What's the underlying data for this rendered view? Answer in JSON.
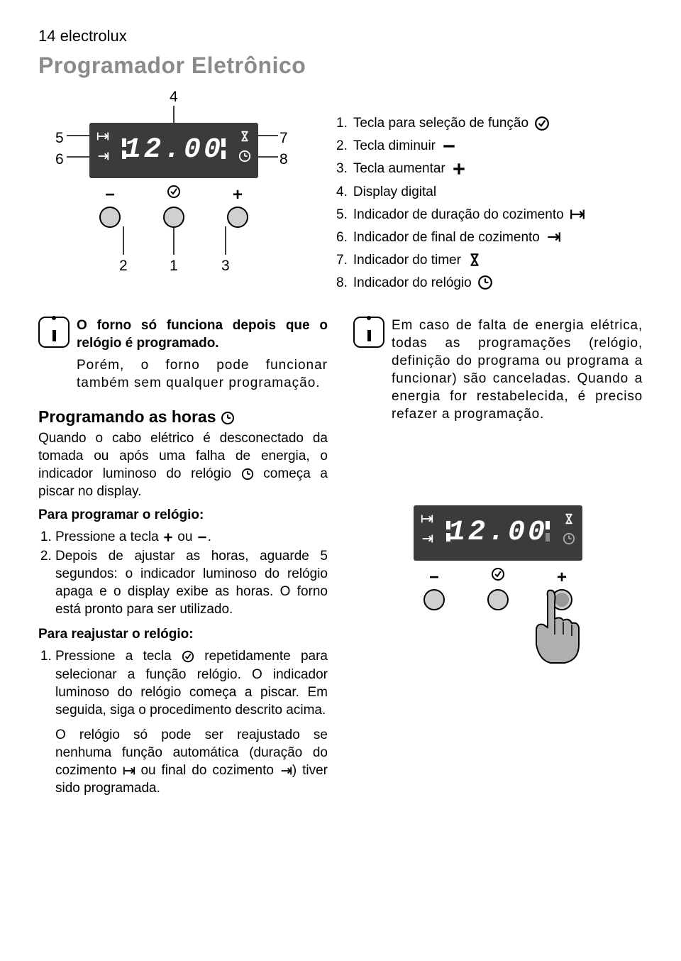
{
  "header": "14 electrolux",
  "title": "Programador Eletrônico",
  "display_time": "12.00",
  "diagram": {
    "callouts": {
      "n1": "1",
      "n2": "2",
      "n3": "3",
      "n4": "4",
      "n5": "5",
      "n6": "6",
      "n7": "7",
      "n8": "8"
    }
  },
  "legend": [
    {
      "n": "1.",
      "t": "Tecla para seleção de função",
      "icon": "func"
    },
    {
      "n": "2.",
      "t": "Tecla diminuir",
      "icon": "minus"
    },
    {
      "n": "3.",
      "t": "Tecla aumentar",
      "icon": "plus"
    },
    {
      "n": "4.",
      "t": "Display digital",
      "icon": ""
    },
    {
      "n": "5.",
      "t": "Indicador de duração do cozimento",
      "icon": "dur"
    },
    {
      "n": "6.",
      "t": "Indicador de final de cozimento",
      "icon": "end"
    },
    {
      "n": "7.",
      "t": "Indicador do timer",
      "icon": "timer"
    },
    {
      "n": "8.",
      "t": "Indicador do relógio",
      "icon": "clock"
    }
  ],
  "left": {
    "info": "O forno só funciona depois que o relógio é programado.",
    "info2": "Porém, o forno pode funcionar também sem qualquer programação.",
    "h_horas": "Programando as horas",
    "p_horas": "Quando o cabo elétrico é desconectado da tomada ou após uma falha de energia, o indicador luminoso do relógio      começa a piscar no display.",
    "h_prog": "Para programar o relógio:",
    "s1": "Pressione a tecla      ou     .",
    "s2": "Depois de ajustar as horas, aguarde 5 segundos: o indicador luminoso do relógio apaga e o display exibe as horas. O forno está pronto para ser utilizado.",
    "h_reaj": "Para reajustar o relógio:",
    "r1a": "Pressione a tecla ",
    "r1b": " repetidamente para selecionar a função relógio. O indicador luminoso do relógio começa a piscar. Em seguida, siga o procedimento descrito acima.",
    "r2": "O relógio só pode ser reajustado se nenhuma função automática (duração do cozimento      ou final do cozimento     ) tiver sido programada."
  },
  "right": {
    "info": "Em caso de falta de energia elétrica, todas as programações (relógio, definição do programa ou programa a funcionar) são canceladas. Quando a energia for restabelecida, é preciso refazer a programação."
  },
  "colors": {
    "title_gray": "#8a8a8a",
    "panel_bg": "#3b3b3b",
    "dial_fill": "#d0d0d0",
    "hand_fill": "#b0b0b0"
  }
}
